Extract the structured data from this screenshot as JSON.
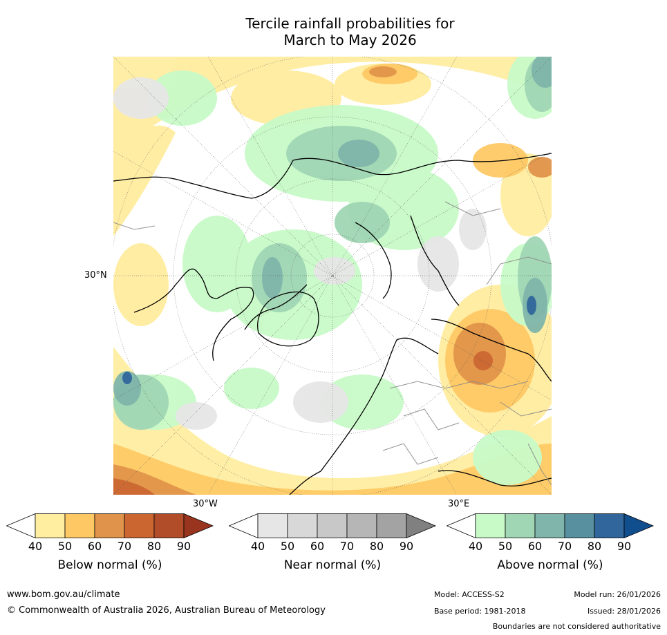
{
  "title": {
    "line1": "Tercile rainfall probabilities for",
    "line2": "March to May 2026"
  },
  "map": {
    "lat_label": "30°N",
    "lon_label_west": "30°W",
    "lon_label_east": "30°E"
  },
  "legends": {
    "below": {
      "title": "Below normal (%)",
      "ticks": [
        "40",
        "50",
        "60",
        "70",
        "80",
        "90"
      ],
      "colors": [
        "#ffffff",
        "#ffeda0",
        "#fec965",
        "#e0934a",
        "#cb6631",
        "#b24d29",
        "#99341e"
      ]
    },
    "near": {
      "title": "Near normal (%)",
      "ticks": [
        "40",
        "50",
        "60",
        "70",
        "80",
        "90"
      ],
      "colors": [
        "#ffffff",
        "#e6e6e6",
        "#d8d8d8",
        "#c8c8c8",
        "#b6b6b6",
        "#a3a3a3",
        "#808080"
      ]
    },
    "above": {
      "title": "Above normal (%)",
      "ticks": [
        "40",
        "50",
        "60",
        "70",
        "80",
        "90"
      ],
      "colors": [
        "#ffffff",
        "#c8fac8",
        "#a0d6b4",
        "#7fb5ab",
        "#5990a0",
        "#30669b",
        "#114e8e"
      ]
    }
  },
  "footer": {
    "website": "www.bom.gov.au/climate",
    "copyright": "© Commonwealth of Australia 2026, Australian Bureau of Meteorology",
    "model": "Model: ACCESS-S2",
    "model_run": "Model run: 26/01/2026",
    "base_period": "Base period: 1981-2018",
    "issued": "Issued: 28/01/2026",
    "disclaimer": "Boundaries are not considered authoritative"
  }
}
